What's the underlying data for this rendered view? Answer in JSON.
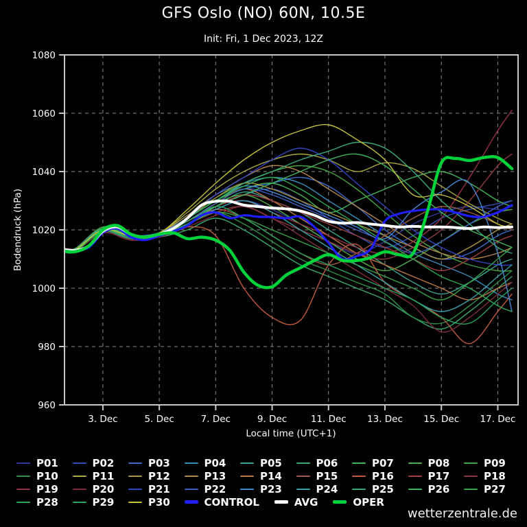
{
  "header": {
    "title": "GFS Oslo (NO) 60N, 10.5E",
    "subtitle": "Init: Fri, 1 Dec 2023, 12Z"
  },
  "footer": {
    "watermark": "wetterzentrale.de"
  },
  "legend": {
    "rows": [
      [
        "P01",
        "P02",
        "P03",
        "P04",
        "P05",
        "P06",
        "P07",
        "P08",
        "P09"
      ],
      [
        "P10",
        "P11",
        "P12",
        "P13",
        "P14",
        "P15",
        "P16",
        "P17",
        "P18"
      ],
      [
        "P19",
        "P20",
        "P21",
        "P22",
        "P23",
        "P24",
        "P25",
        "P26",
        "P27"
      ],
      [
        "P28",
        "P29",
        "P30",
        "CONTROL",
        "AVG",
        "OPER"
      ]
    ]
  },
  "chart_data": {
    "type": "line",
    "title": "GFS Oslo (NO) 60N, 10.5E",
    "subtitle": "Init: Fri, 1 Dec 2023, 12Z",
    "xlabel": "Local time (UTC+1)",
    "ylabel": "Bodendruck (hPa)",
    "ylim": [
      960,
      1080
    ],
    "yticks": [
      960,
      980,
      1000,
      1020,
      1040,
      1060,
      1080
    ],
    "xlim_days": [
      1.64,
      17.72
    ],
    "xticks": [
      {
        "day": 3,
        "label": "3. Dec"
      },
      {
        "day": 5,
        "label": "5. Dec"
      },
      {
        "day": 7,
        "label": "7. Dec"
      },
      {
        "day": 9,
        "label": "9. Dec"
      },
      {
        "day": 11,
        "label": "11. Dec"
      },
      {
        "day": 13,
        "label": "13. Dec"
      },
      {
        "day": 15,
        "label": "15. Dec"
      },
      {
        "day": 17,
        "label": "17. Dec"
      }
    ],
    "grid": "dashed",
    "legend_position": "bottom",
    "x_days_members": [
      1.5,
      2,
      3,
      4,
      5,
      6,
      7,
      8,
      9,
      10,
      11,
      12,
      13,
      14,
      15,
      16,
      17,
      17.5
    ],
    "x_days_named": [
      1.5,
      2,
      2.5,
      3,
      3.5,
      4,
      4.5,
      5,
      5.5,
      6,
      6.5,
      7,
      7.5,
      8,
      8.5,
      9,
      9.5,
      10,
      10.5,
      11,
      11.5,
      12,
      12.5,
      13,
      13.5,
      14,
      14.5,
      15,
      15.5,
      16,
      16.5,
      17,
      17.5
    ],
    "series": [
      {
        "name": "P01",
        "role": "member",
        "color": "#30389b",
        "x": "members",
        "values": [
          1013,
          1012.5,
          1019,
          1017,
          1018,
          1022,
          1027,
          1030,
          1027,
          1022,
          1016,
          1012,
          1016,
          1022,
          1026,
          1028,
          1027,
          1027
        ]
      },
      {
        "name": "P02",
        "role": "member",
        "color": "#3550b4",
        "x": "members",
        "values": [
          1013.5,
          1013,
          1019.5,
          1017.5,
          1018.5,
          1023,
          1028,
          1032,
          1034,
          1030,
          1024,
          1018,
          1014,
          1018,
          1024,
          1027,
          1029,
          1030
        ]
      },
      {
        "name": "P03",
        "role": "member",
        "color": "#3a6cc8",
        "x": "members",
        "values": [
          1014,
          1013.5,
          1020,
          1018,
          1019,
          1024,
          1030,
          1034,
          1036,
          1038,
          1035,
          1028,
          1020,
          1014,
          1010,
          1012,
          1018,
          1020
        ]
      },
      {
        "name": "P04",
        "role": "member",
        "color": "#3a8cb9",
        "x": "members",
        "values": [
          1013,
          1013,
          1020.5,
          1018,
          1019,
          1025,
          1032,
          1036,
          1038,
          1036,
          1030,
          1024,
          1018,
          1012,
          1008,
          1004,
          998,
          996
        ]
      },
      {
        "name": "P05",
        "role": "member",
        "color": "#3aa591",
        "x": "members",
        "values": [
          1013.5,
          1013,
          1021,
          1017.5,
          1018,
          1022,
          1028,
          1033,
          1030,
          1026,
          1020,
          1014,
          1008,
          1002,
          998,
          1002,
          1008,
          1010
        ]
      },
      {
        "name": "P06",
        "role": "member",
        "color": "#3aaa6e",
        "x": "members",
        "values": [
          1013,
          1012.5,
          1020,
          1017,
          1017.5,
          1020,
          1024,
          1020,
          1014,
          1008,
          1004,
          1000,
          996,
          990,
          986,
          992,
          1000,
          1004
        ]
      },
      {
        "name": "P07",
        "role": "member",
        "color": "#46b45a",
        "x": "members",
        "values": [
          1013.5,
          1013,
          1021,
          1018,
          1018.5,
          1024,
          1030,
          1034,
          1036,
          1032,
          1026,
          1030,
          1034,
          1038,
          1040,
          1036,
          1030,
          1028
        ]
      },
      {
        "name": "P08",
        "role": "member",
        "color": "#4fae4b",
        "x": "members",
        "values": [
          1013,
          1013,
          1020.5,
          1017.5,
          1018,
          1023,
          1029,
          1032,
          1028,
          1022,
          1016,
          1010,
          1006,
          1010,
          1016,
          1022,
          1026,
          1027
        ]
      },
      {
        "name": "P09",
        "role": "member",
        "color": "#46a541",
        "x": "members",
        "values": [
          1014,
          1013.5,
          1021,
          1018,
          1019,
          1025,
          1031,
          1036,
          1040,
          1042,
          1040,
          1034,
          1026,
          1018,
          1012,
          1008,
          1006,
          1006
        ]
      },
      {
        "name": "P10",
        "role": "member",
        "color": "#2e9146",
        "x": "members",
        "values": [
          1013,
          1012.5,
          1019.5,
          1017,
          1018,
          1022,
          1026,
          1022,
          1016,
          1010,
          1006,
          1002,
          998,
          990,
          988,
          994,
          1002,
          1006
        ]
      },
      {
        "name": "P11",
        "role": "member",
        "color": "#aaaa41",
        "x": "members",
        "values": [
          1013.5,
          1013,
          1020,
          1018,
          1019,
          1026,
          1034,
          1040,
          1044,
          1046,
          1044,
          1040,
          1043,
          1041,
          1035,
          1029,
          1024,
          1022
        ]
      },
      {
        "name": "P12",
        "role": "member",
        "color": "#aa9641",
        "x": "members",
        "values": [
          1013,
          1013,
          1020,
          1017.5,
          1018.5,
          1024,
          1031,
          1036,
          1034,
          1030,
          1026,
          1022,
          1018,
          1014,
          1010,
          1014,
          1020,
          1022
        ]
      },
      {
        "name": "P13",
        "role": "member",
        "color": "#b4874b",
        "x": "members",
        "values": [
          1014,
          1013.5,
          1020.5,
          1018,
          1019,
          1025,
          1032,
          1038,
          1042,
          1040,
          1034,
          1028,
          1022,
          1016,
          1012,
          1010,
          1012,
          1014
        ]
      },
      {
        "name": "P14",
        "role": "member",
        "color": "#be7841",
        "x": "members",
        "values": [
          1013,
          1012.5,
          1019.5,
          1017,
          1018,
          1023,
          1029,
          1034,
          1030,
          1024,
          1018,
          1012,
          1008,
          1004,
          1000,
          996,
          1000,
          1002
        ]
      },
      {
        "name": "P15",
        "role": "member",
        "color": "#a05f46",
        "x": "members",
        "values": [
          1013.5,
          1013,
          1020,
          1017.5,
          1018,
          1022,
          1027,
          1024,
          1018,
          1012,
          1008,
          1012,
          1018,
          1024,
          1028,
          1026,
          1022,
          1020
        ]
      },
      {
        "name": "P16",
        "role": "member",
        "color": "#c05a3c",
        "x": "members",
        "values": [
          1013,
          1012.5,
          1019,
          1016.5,
          1017.5,
          1021,
          1018,
          1000,
          990,
          989,
          1008,
          1015,
          1002,
          996,
          990,
          981,
          992,
          998
        ]
      },
      {
        "name": "P17",
        "role": "member",
        "color": "#a04141",
        "x": "members",
        "values": [
          1013.5,
          1013,
          1020,
          1017,
          1018,
          1023,
          1028,
          1032,
          1030,
          1026,
          1022,
          1018,
          1014,
          1010,
          1006,
          1010,
          1016,
          1018
        ]
      },
      {
        "name": "P18",
        "role": "member",
        "color": "#8f3a41",
        "x": "members",
        "values": [
          1013,
          1013,
          1019.5,
          1017,
          1018,
          1022,
          1026,
          1028,
          1024,
          1020,
          1016,
          1012,
          1010,
          1014,
          1020,
          1030,
          1042,
          1046
        ]
      },
      {
        "name": "P19",
        "role": "member",
        "color": "#963246",
        "x": "members",
        "values": [
          1014,
          1013.5,
          1020,
          1017.5,
          1018.5,
          1023,
          1028,
          1030,
          1026,
          1022,
          1018,
          1014,
          1012,
          1016,
          1024,
          1038,
          1054,
          1061
        ]
      },
      {
        "name": "P20",
        "role": "member",
        "color": "#7d2d3c",
        "x": "members",
        "values": [
          1013,
          1012.5,
          1019,
          1016.5,
          1017.5,
          1021,
          1025,
          1028,
          1024,
          1018,
          1012,
          1006,
          1000,
          994,
          985,
          990,
          998,
          1002
        ]
      },
      {
        "name": "P21",
        "role": "member",
        "color": "#3246c3",
        "x": "members",
        "values": [
          1013.5,
          1013,
          1019.5,
          1017,
          1018,
          1024,
          1032,
          1038,
          1044,
          1048,
          1044,
          1036,
          1028,
          1020,
          1014,
          1010,
          1008,
          1008
        ]
      },
      {
        "name": "P22",
        "role": "member",
        "color": "#3c5fc3",
        "x": "members",
        "values": [
          1013,
          1013,
          1020,
          1017.5,
          1018,
          1023,
          1029,
          1034,
          1032,
          1028,
          1024,
          1020,
          1016,
          1012,
          1016,
          1022,
          1028,
          1030
        ]
      },
      {
        "name": "P23",
        "role": "member",
        "color": "#4687d2",
        "x": "members",
        "values": [
          1014,
          1013.5,
          1020.5,
          1018,
          1019,
          1024,
          1030,
          1035,
          1033,
          1029,
          1025,
          1021,
          1017,
          1027,
          1033,
          1036,
          1012,
          992
        ]
      },
      {
        "name": "P24",
        "role": "member",
        "color": "#3aa0aa",
        "x": "members",
        "values": [
          1013,
          1012.5,
          1020,
          1017,
          1018,
          1022,
          1027,
          1030,
          1026,
          1020,
          1014,
          1008,
          1002,
          996,
          992,
          996,
          1004,
          1008
        ]
      },
      {
        "name": "P25",
        "role": "member",
        "color": "#3caa78",
        "x": "members",
        "values": [
          1013.5,
          1013,
          1020.5,
          1018,
          1018.5,
          1024,
          1030,
          1036,
          1040,
          1044,
          1047,
          1050,
          1048,
          1040,
          1030,
          1022,
          1014,
          1012
        ]
      },
      {
        "name": "P26",
        "role": "member",
        "color": "#41b45f",
        "x": "members",
        "values": [
          1013,
          1013,
          1019.5,
          1017,
          1018,
          1023,
          1028,
          1032,
          1036,
          1040,
          1044,
          1046,
          1042,
          1034,
          1026,
          1020,
          1016,
          1014
        ]
      },
      {
        "name": "P27",
        "role": "member",
        "color": "#3aa54b",
        "x": "members",
        "values": [
          1014,
          1013.5,
          1020,
          1017.5,
          1018.5,
          1022,
          1026,
          1024,
          1020,
          1016,
          1012,
          1008,
          1004,
          1000,
          996,
          1002,
          1010,
          1014
        ]
      },
      {
        "name": "P28",
        "role": "member",
        "color": "#2eaa55",
        "x": "members",
        "values": [
          1013,
          1012.5,
          1019.5,
          1017,
          1018,
          1024,
          1030,
          1035,
          1038,
          1034,
          1028,
          1022,
          1016,
          1010,
          1004,
          1000,
          994,
          992
        ]
      },
      {
        "name": "P29",
        "role": "member",
        "color": "#28a55f",
        "x": "members",
        "values": [
          1013.5,
          1013,
          1020,
          1017.5,
          1018,
          1022,
          1028,
          1024,
          1018,
          1012,
          1008,
          1004,
          1000,
          996,
          990,
          988,
          996,
          1000
        ]
      },
      {
        "name": "P30",
        "role": "member",
        "color": "#c8c33c",
        "x": "members",
        "values": [
          1013,
          1013,
          1020,
          1018,
          1019,
          1027,
          1036,
          1044,
          1050,
          1054,
          1056,
          1051,
          1044,
          1032,
          1032,
          1028,
          1022,
          1021
        ]
      },
      {
        "name": "CONTROL",
        "role": "control",
        "color": "#1e1eff",
        "x": "named",
        "values": [
          1013.5,
          1013,
          1014,
          1019,
          1020.5,
          1017.5,
          1016.5,
          1018,
          1019.5,
          1021.5,
          1025,
          1026,
          1024,
          1025,
          1024.5,
          1024.4,
          1024,
          1024.5,
          1021,
          1015.5,
          1010,
          1011,
          1013.5,
          1023,
          1025.5,
          1026.5,
          1027,
          1027,
          1026,
          1024.7,
          1024.5,
          1026,
          1028.5
        ]
      },
      {
        "name": "AVG",
        "role": "avg",
        "color": "#ffffff",
        "x": "named",
        "values": [
          1013.5,
          1013,
          1014.5,
          1019.5,
          1021,
          1018.5,
          1017.5,
          1018.5,
          1020.5,
          1024,
          1028.5,
          1029.8,
          1029.8,
          1028.5,
          1028,
          1027.5,
          1027.2,
          1026.5,
          1025,
          1023,
          1022.3,
          1022.5,
          1022,
          1021.5,
          1021,
          1021.2,
          1021,
          1021,
          1020.8,
          1020.5,
          1021,
          1020.8,
          1021
        ]
      },
      {
        "name": "OPER",
        "role": "oper",
        "color": "#00d23c",
        "x": "named",
        "values": [
          1013,
          1012.5,
          1014.5,
          1020,
          1021.5,
          1018.5,
          1017.5,
          1018.5,
          1019,
          1017,
          1017.5,
          1016.5,
          1013,
          1005.5,
          1001,
          1000.5,
          1004.5,
          1007,
          1009.5,
          1011.5,
          1009.5,
          1009.5,
          1010.5,
          1012.5,
          1011.5,
          1012,
          1026,
          1043,
          1044.5,
          1043.8,
          1044.8,
          1044.8,
          1041
        ]
      }
    ]
  }
}
